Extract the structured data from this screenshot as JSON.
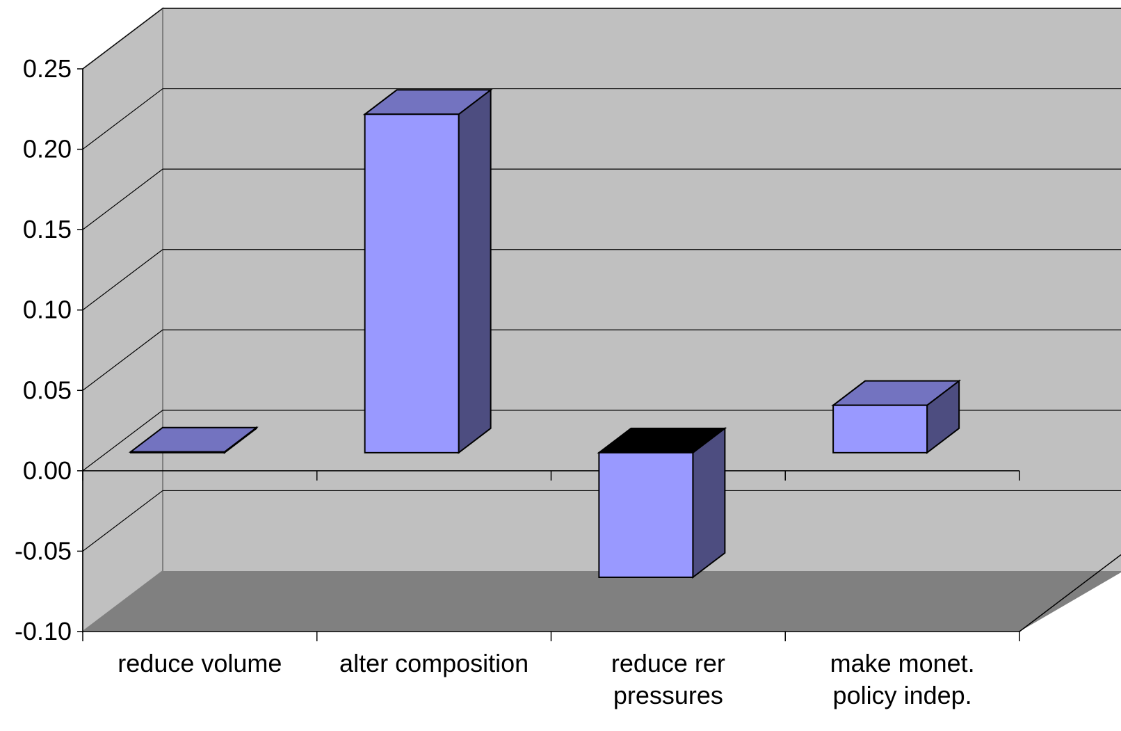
{
  "chart_data": {
    "type": "bar",
    "style": "3d-column",
    "title": "",
    "xlabel": "",
    "ylabel": "",
    "categories": [
      [
        "reduce volume"
      ],
      [
        "alter composition"
      ],
      [
        "reduce rer",
        "pressures"
      ],
      [
        "make monet.",
        "policy indep."
      ]
    ],
    "values": [
      0.023,
      0.233,
      -0.055,
      0.052
    ],
    "ylim": [
      -0.1,
      0.25
    ],
    "yticks": [
      -0.1,
      -0.05,
      0.0,
      0.05,
      0.1,
      0.15,
      0.2,
      0.25
    ],
    "ytick_labels": [
      "-0.10",
      "-0.05",
      "0.00",
      "0.05",
      "0.10",
      "0.15",
      "0.20",
      "0.25"
    ],
    "grid": true,
    "legend": "none"
  },
  "colors": {
    "wall": "#c0c0c0",
    "floor": "#808080",
    "bar_front": "#9999ff",
    "bar_top": "#7373c0",
    "bar_side": "#4d4d80",
    "negative_bar_top": "#000000",
    "gridline": "#000000",
    "wall_edge": "#808080"
  }
}
